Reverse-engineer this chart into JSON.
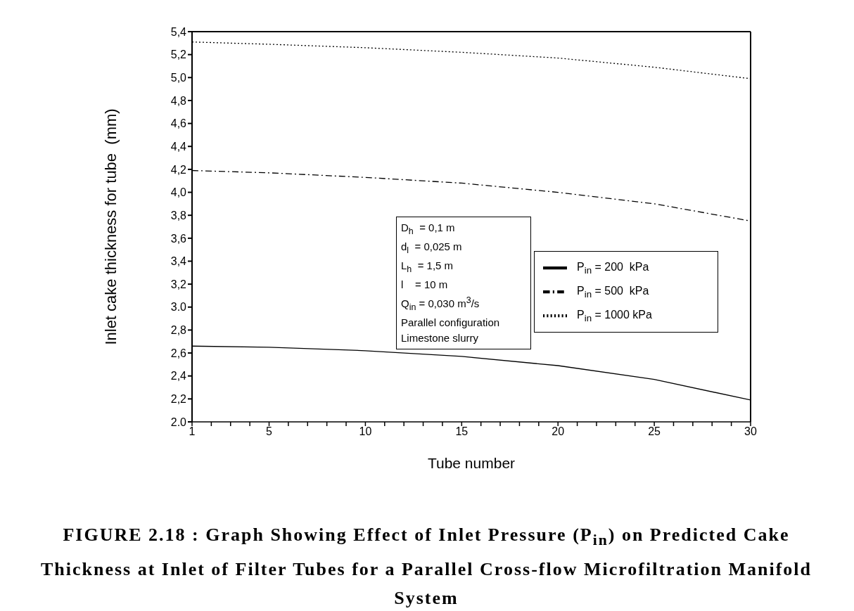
{
  "chart_data": {
    "type": "line",
    "title": "FIGURE 2.18 : Graph Showing Effect of Inlet Pressure (P$_{in}$) on Predicted Cake Thickness at Inlet of Filter Tubes for a Parallel Cross-flow Microfiltration Manifold System",
    "xlabel": "Tube number",
    "ylabel": "Inlet cake thickness for tube  (mm)",
    "x": [
      1,
      5,
      10,
      15,
      20,
      25,
      30
    ],
    "series": [
      {
        "name": "P$_{in}$ = 200  kPa",
        "color": "#000000",
        "line_style": "solid",
        "values": [
          2.66,
          2.65,
          2.62,
          2.57,
          2.49,
          2.37,
          2.19
        ]
      },
      {
        "name": "P$_{in}$ = 500  kPa",
        "color": "#000000",
        "line_style": "dashed",
        "values": [
          4.19,
          4.17,
          4.13,
          4.08,
          4.0,
          3.9,
          3.75
        ]
      },
      {
        "name": "P$_{in}$ = 1000 kPa",
        "color": "#000000",
        "line_style": "dotted",
        "values": [
          5.31,
          5.29,
          5.26,
          5.22,
          5.17,
          5.09,
          4.99
        ]
      }
    ],
    "xlim": [
      1,
      30
    ],
    "xticks": [
      1,
      {
        "value": 2,
        "label": null
      },
      {
        "value": 3,
        "label": null
      },
      {
        "value": 4,
        "label": null
      },
      5,
      {
        "value": 6,
        "label": null
      },
      {
        "value": 7,
        "label": null
      },
      {
        "value": 8,
        "label": null
      },
      {
        "value": 9,
        "label": null
      },
      10,
      {
        "value": 11,
        "label": null
      },
      {
        "value": 12,
        "label": null
      },
      {
        "value": 13,
        "label": null
      },
      {
        "value": 14,
        "label": null
      },
      15,
      {
        "value": 16,
        "label": null
      },
      {
        "value": 17,
        "label": null
      },
      {
        "value": 18,
        "label": null
      },
      {
        "value": 19,
        "label": null
      },
      20,
      {
        "value": 21,
        "label": null
      },
      {
        "value": 22,
        "label": null
      },
      {
        "value": 23,
        "label": null
      },
      {
        "value": 24,
        "label": null
      },
      25,
      {
        "value": 26,
        "label": null
      },
      {
        "value": 27,
        "label": null
      },
      {
        "value": 28,
        "label": null
      },
      {
        "value": 29,
        "label": null
      },
      30
    ],
    "ylim": [
      2.0,
      5.4
    ],
    "yticks": [
      {
        "value": 2.0,
        "label": "2.0"
      },
      {
        "value": 2.2,
        "label": "2,2"
      },
      {
        "value": 2.4,
        "label": "2,4"
      },
      {
        "value": 2.6,
        "label": "2,6"
      },
      {
        "value": 2.8,
        "label": "2,8"
      },
      {
        "value": 3.0,
        "label": "3.0"
      },
      {
        "value": 3.2,
        "label": "3,2"
      },
      {
        "value": 3.4,
        "label": "3,4"
      },
      {
        "value": 3.6,
        "label": "3,6"
      },
      {
        "value": 3.8,
        "label": "3,8"
      },
      {
        "value": 4.0,
        "label": "4,0"
      },
      {
        "value": 4.2,
        "label": "4,2"
      },
      {
        "value": 4.4,
        "label": "4,4"
      },
      {
        "value": 4.6,
        "label": "4,6"
      },
      {
        "value": 4.8,
        "label": "4,8"
      },
      {
        "value": 5.0,
        "label": "5,0"
      },
      {
        "value": 5.2,
        "label": "5,2"
      },
      {
        "value": 5.4,
        "label": "5,4"
      }
    ],
    "annotations": [
      "D$_{h}$  = 0,1 m",
      "d$_{l}$  = 0,025 m",
      "L$_{h}$  = 1,5 m",
      "l    = 10 m",
      "Q$_{in}$ = 0,030 m$^{3}$/s",
      "Parallel configuration",
      "Limestone slurry"
    ],
    "legend": "right",
    "grid": false,
    "marker": "none"
  }
}
